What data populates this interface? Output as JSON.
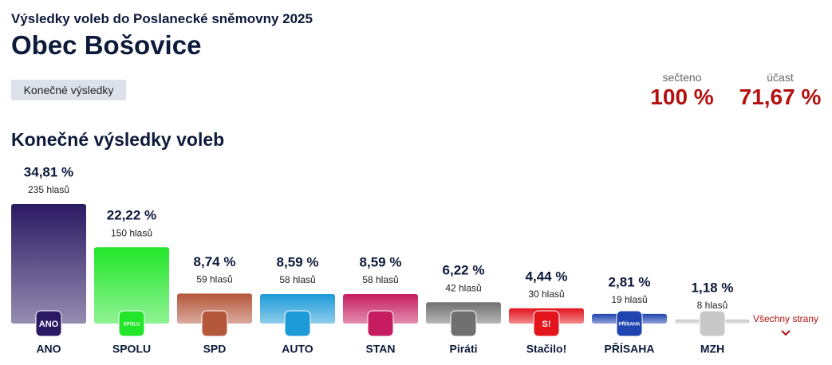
{
  "header": {
    "subtitle": "Výsledky voleb do Poslanecké sněmovny 2025",
    "title": "Obec Bošovice",
    "tab": "Konečné výsledky",
    "stats": [
      {
        "label": "sečteno",
        "value": 100,
        "value_label": "100 %"
      },
      {
        "label": "účast",
        "value": 71.67,
        "value_label": "71,67 %"
      }
    ]
  },
  "chart_data": {
    "type": "bar",
    "title": "Konečné výsledky voleb",
    "categories": [
      "ANO",
      "SPOLU",
      "SPD",
      "AUTO",
      "STAN",
      "Piráti",
      "Stačilo!",
      "PŘÍSAHA",
      "MZH"
    ],
    "values": [
      34.81,
      22.22,
      8.74,
      8.59,
      8.59,
      6.22,
      4.44,
      2.81,
      1.18
    ],
    "value_labels": [
      "34,81 %",
      "22,22 %",
      "8,74 %",
      "8,59 %",
      "8,59 %",
      "6,22 %",
      "4,44 %",
      "2,81 %",
      "1,18 %"
    ],
    "votes": [
      235,
      150,
      59,
      58,
      58,
      42,
      30,
      19,
      8
    ],
    "vote_labels": [
      "235 hlasů",
      "150 hlasů",
      "59 hlasů",
      "58 hlasů",
      "58 hlasů",
      "42 hlasů",
      "30 hlasů",
      "19 hlasů",
      "8 hlasů"
    ],
    "colors": [
      "#2b1a63",
      "#22e62a",
      "#b4573b",
      "#1d9ad8",
      "#c51d5f",
      "#707070",
      "#e3141c",
      "#1f44b0",
      "#c8c8c8"
    ],
    "logo_labels": [
      "ANO",
      "SPOLU",
      null,
      null,
      null,
      null,
      "S!",
      "PŘÍSAHA",
      null
    ],
    "more_link": "Všechny strany"
  }
}
